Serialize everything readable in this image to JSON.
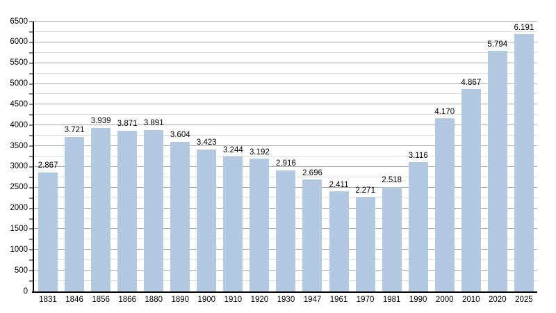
{
  "chart_data": {
    "type": "bar",
    "title": "",
    "categories": [
      "1831",
      "1846",
      "1856",
      "1866",
      "1880",
      "1890",
      "1900",
      "1910",
      "1920",
      "1930",
      "1947",
      "1961",
      "1970",
      "1981",
      "1990",
      "2000",
      "2010",
      "2020",
      "2025"
    ],
    "values": [
      2867,
      3721,
      3939,
      3871,
      3891,
      3604,
      3423,
      3244,
      3192,
      2916,
      2696,
      2411,
      2271,
      2518,
      3116,
      4170,
      4867,
      5794,
      6191
    ],
    "value_labels": [
      "2.867",
      "3.721",
      "3.939",
      "3.871",
      "3.891",
      "3.604",
      "3.423",
      "3.244",
      "3.192",
      "2.916",
      "2.696",
      "2.411",
      "2.271",
      "2.518",
      "3.116",
      "4.170",
      "4.867",
      "5.794",
      "6.191"
    ],
    "xlabel": "",
    "ylabel": "",
    "ylim": [
      0,
      6500
    ],
    "y_major_step": 500,
    "y_minor_step": 250,
    "grid": "on",
    "legend_position": "none",
    "colors": {
      "bar": "#b3c9e1",
      "grid_major": "#a9a9a9",
      "grid_minor": "#dcdcdc",
      "axis": "#000000",
      "text": "#000000",
      "background": "#ffffff"
    }
  }
}
